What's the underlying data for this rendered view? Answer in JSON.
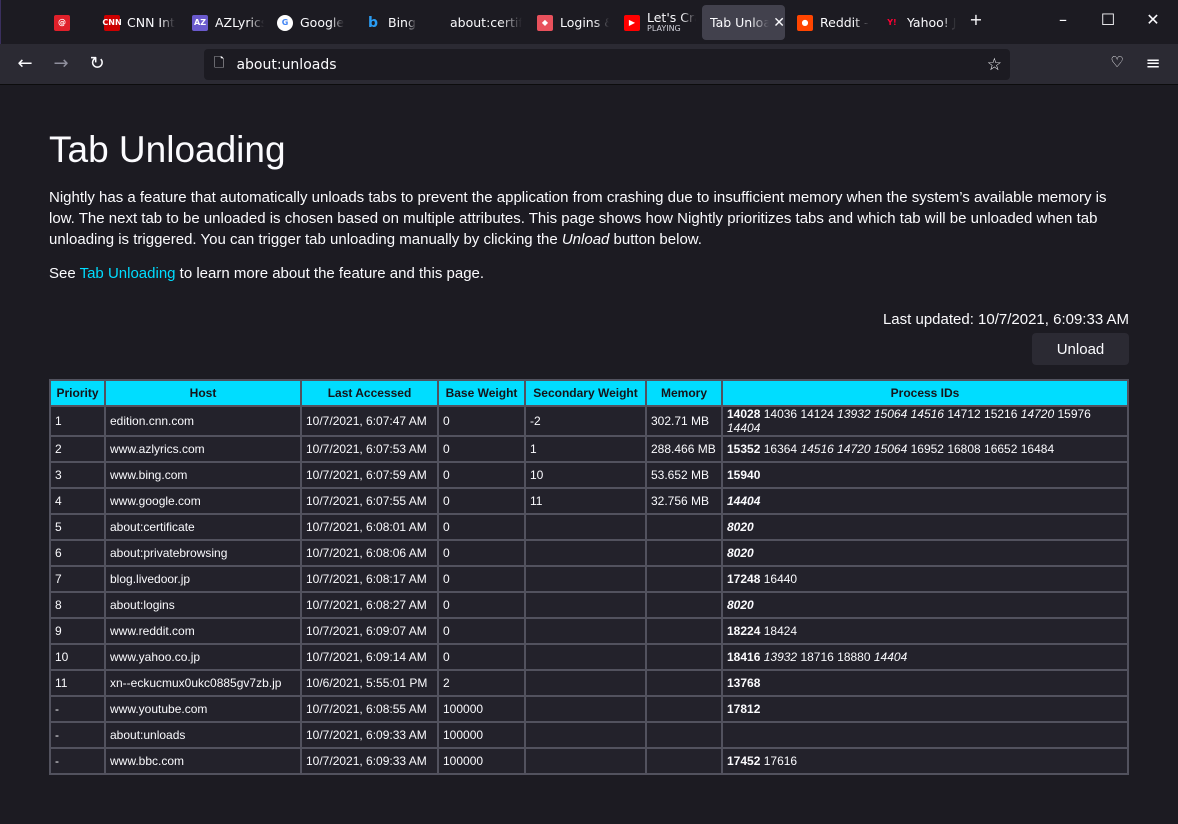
{
  "tabs": [
    {
      "label": "",
      "icon": "at-icon",
      "color": "#e0202a",
      "text": "@"
    },
    {
      "label": "CNN Int",
      "icon": "cnn-icon",
      "color": "#cc0000",
      "text": "CNN"
    },
    {
      "label": "AZLyrics",
      "icon": "azlyrics-icon",
      "color": "#6a5acd",
      "text": "AZ"
    },
    {
      "label": "Google",
      "icon": "google-icon",
      "color": "#ffffff",
      "text": "G"
    },
    {
      "label": "Bing",
      "icon": "bing-icon",
      "color": "#1c1b22",
      "text": "b"
    },
    {
      "label": "about:certifi",
      "icon": "",
      "color": "",
      "text": ""
    },
    {
      "label": "Logins &",
      "icon": "lockwise-icon",
      "color": "#e8515c",
      "text": "◆"
    },
    {
      "label": "Let's Cra",
      "sub": "PLAYING",
      "icon": "youtube-icon",
      "color": "#ff0000",
      "text": "▶"
    },
    {
      "label": "Tab Unloa",
      "icon": "",
      "color": "",
      "text": "",
      "active": true
    },
    {
      "label": "Reddit -",
      "icon": "reddit-icon",
      "color": "#ff4500",
      "text": "●"
    },
    {
      "label": "Yahoo! J",
      "icon": "yahoo-icon",
      "color": "#1c1b22",
      "text": "Y!"
    }
  ],
  "url": "about:unloads",
  "page": {
    "title": "Tab Unloading",
    "intro_1": "Nightly has a feature that automatically unloads tabs to prevent the application from crashing due to insufficient memory when the system’s available memory is low. The next tab to be unloaded is chosen based on multiple attributes. This page shows how Nightly prioritizes tabs and which tab will be unloaded when tab unloading is triggered. You can trigger tab unloading manually by clicking the ",
    "intro_em": "Unload",
    "intro_2": " button below.",
    "see_1": "See ",
    "see_link": "Tab Unloading",
    "see_2": " to learn more about the feature and this page.",
    "last_updated": "Last updated: 10/7/2021, 6:09:33 AM",
    "unload_label": "Unload"
  },
  "table": {
    "headers": [
      "Priority",
      "Host",
      "Last Accessed",
      "Base Weight",
      "Secondary Weight",
      "Memory",
      "Process IDs"
    ],
    "rows": [
      {
        "cells": [
          "1",
          "edition.cnn.com",
          "10/7/2021, 6:07:47 AM",
          "0",
          "-2",
          "302.71 MB"
        ],
        "pids": [
          {
            "v": "14028",
            "b": 1
          },
          {
            "v": "14036"
          },
          {
            "v": "14124"
          },
          {
            "v": "13932",
            "i": 1
          },
          {
            "v": "15064",
            "i": 1
          },
          {
            "v": "14516",
            "i": 1
          },
          {
            "v": "14712"
          },
          {
            "v": "15216"
          },
          {
            "v": "14720",
            "i": 1
          },
          {
            "v": "15976"
          },
          {
            "v": "14404",
            "i": 1
          }
        ]
      },
      {
        "cells": [
          "2",
          "www.azlyrics.com",
          "10/7/2021, 6:07:53 AM",
          "0",
          "1",
          "288.466 MB"
        ],
        "pids": [
          {
            "v": "15352",
            "b": 1
          },
          {
            "v": "16364"
          },
          {
            "v": "14516",
            "i": 1
          },
          {
            "v": "14720",
            "i": 1
          },
          {
            "v": "15064",
            "i": 1
          },
          {
            "v": "16952"
          },
          {
            "v": "16808"
          },
          {
            "v": "16652"
          },
          {
            "v": "16484"
          }
        ]
      },
      {
        "cells": [
          "3",
          "www.bing.com",
          "10/7/2021, 6:07:59 AM",
          "0",
          "10",
          "53.652 MB"
        ],
        "pids": [
          {
            "v": "15940",
            "b": 1
          }
        ]
      },
      {
        "cells": [
          "4",
          "www.google.com",
          "10/7/2021, 6:07:55 AM",
          "0",
          "11",
          "32.756 MB"
        ],
        "pids": [
          {
            "v": "14404",
            "b": 1,
            "i": 1
          }
        ]
      },
      {
        "cells": [
          "5",
          "about:certificate",
          "10/7/2021, 6:08:01 AM",
          "0",
          "",
          ""
        ],
        "pids": [
          {
            "v": "8020",
            "b": 1,
            "i": 1
          }
        ]
      },
      {
        "cells": [
          "6",
          "about:privatebrowsing",
          "10/7/2021, 6:08:06 AM",
          "0",
          "",
          ""
        ],
        "pids": [
          {
            "v": "8020",
            "b": 1,
            "i": 1
          }
        ]
      },
      {
        "cells": [
          "7",
          "blog.livedoor.jp",
          "10/7/2021, 6:08:17 AM",
          "0",
          "",
          ""
        ],
        "pids": [
          {
            "v": "17248",
            "b": 1
          },
          {
            "v": "16440"
          }
        ]
      },
      {
        "cells": [
          "8",
          "about:logins",
          "10/7/2021, 6:08:27 AM",
          "0",
          "",
          ""
        ],
        "pids": [
          {
            "v": "8020",
            "b": 1,
            "i": 1
          }
        ]
      },
      {
        "cells": [
          "9",
          "www.reddit.com",
          "10/7/2021, 6:09:07 AM",
          "0",
          "",
          ""
        ],
        "pids": [
          {
            "v": "18224",
            "b": 1
          },
          {
            "v": "18424"
          }
        ]
      },
      {
        "cells": [
          "10",
          "www.yahoo.co.jp",
          "10/7/2021, 6:09:14 AM",
          "0",
          "",
          ""
        ],
        "pids": [
          {
            "v": "18416",
            "b": 1
          },
          {
            "v": "13932",
            "i": 1
          },
          {
            "v": "18716"
          },
          {
            "v": "18880"
          },
          {
            "v": "14404",
            "i": 1
          }
        ]
      },
      {
        "cells": [
          "11",
          "xn--eckucmux0ukc0885gv7zb.jp",
          "10/6/2021, 5:55:01 PM",
          "2",
          "",
          ""
        ],
        "pids": [
          {
            "v": "13768",
            "b": 1
          }
        ]
      },
      {
        "cells": [
          "-",
          "www.youtube.com",
          "10/7/2021, 6:08:55 AM",
          "100000",
          "",
          ""
        ],
        "pids": [
          {
            "v": "17812",
            "b": 1
          }
        ]
      },
      {
        "cells": [
          "-",
          "about:unloads",
          "10/7/2021, 6:09:33 AM",
          "100000",
          "",
          ""
        ],
        "pids": []
      },
      {
        "cells": [
          "-",
          "www.bbc.com",
          "10/7/2021, 6:09:33 AM",
          "100000",
          "",
          ""
        ],
        "pids": [
          {
            "v": "17452",
            "b": 1
          },
          {
            "v": "17616"
          }
        ]
      }
    ]
  }
}
